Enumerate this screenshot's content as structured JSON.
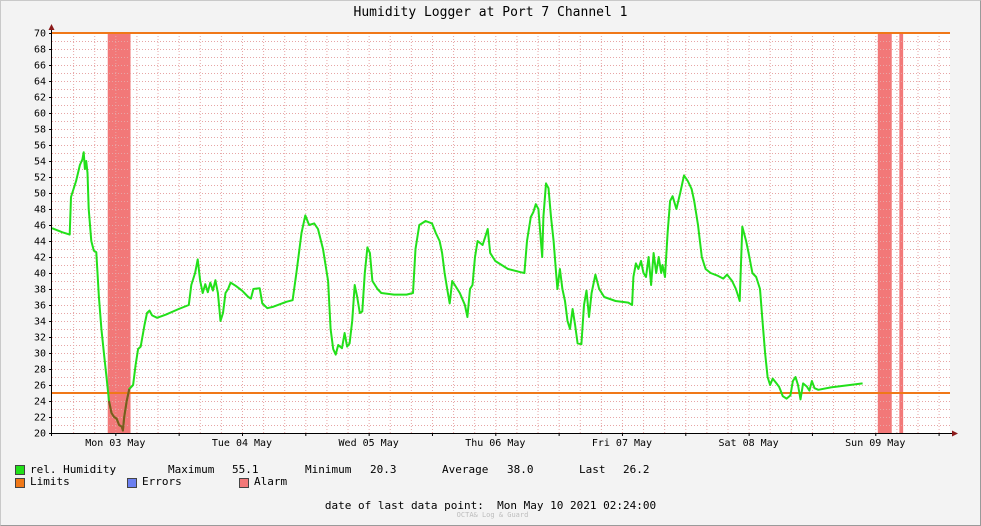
{
  "title": "Humidity Logger at Port 7 Channel 1",
  "colors": {
    "humidity": "#22e01a",
    "humidity_dark": "#7a5a1e",
    "limits": "#f07818",
    "errors": "#6b7ff0",
    "alarm": "#f27878",
    "grid": "#e7a5a5",
    "axis": "#000000"
  },
  "legend": {
    "humidity_label": "rel. Humidity",
    "max_label": "Maximum",
    "max_value": "55.1",
    "min_label": "Minimum",
    "min_value": "20.3",
    "avg_label": "Average",
    "avg_value": "38.0",
    "last_label": "Last",
    "last_value": "26.2",
    "limits_label": "Limits",
    "errors_label": "Errors",
    "alarm_label": "Alarm"
  },
  "footer": {
    "label": "date of last data point:",
    "value": "Mon May 10 2021 02:24:00"
  },
  "credit": "OCTA& Log & Guard",
  "chart_data": {
    "type": "line",
    "title": "Humidity Logger at Port 7 Channel 1",
    "ylim": [
      20,
      70
    ],
    "y_ticks": [
      20,
      22,
      24,
      26,
      28,
      30,
      32,
      34,
      36,
      38,
      40,
      42,
      44,
      46,
      48,
      50,
      52,
      54,
      56,
      58,
      60,
      62,
      64,
      66,
      68,
      70
    ],
    "x_unit": "days from 2021-05-02 12:00",
    "xlim": [
      0,
      7.09
    ],
    "x_ticks": [
      {
        "x": 0.5,
        "label": "Mon 03 May"
      },
      {
        "x": 1.5,
        "label": "Tue 04 May"
      },
      {
        "x": 2.5,
        "label": "Wed 05 May"
      },
      {
        "x": 3.5,
        "label": "Thu 06 May"
      },
      {
        "x": 4.5,
        "label": "Fri 07 May"
      },
      {
        "x": 5.5,
        "label": "Sat 08 May"
      },
      {
        "x": 6.5,
        "label": "Sun 09 May"
      }
    ],
    "grid": true,
    "limits": [
      25,
      70
    ],
    "alarm_ranges": [
      [
        0.44,
        0.62
      ],
      [
        6.52,
        6.63
      ],
      [
        6.69,
        6.72
      ]
    ],
    "series": [
      {
        "name": "rel. Humidity",
        "points": [
          [
            0.0,
            45.6
          ],
          [
            0.08,
            45.1
          ],
          [
            0.14,
            44.8
          ],
          [
            0.15,
            49.5
          ],
          [
            0.19,
            51.5
          ],
          [
            0.22,
            53.5
          ],
          [
            0.24,
            54.2
          ],
          [
            0.25,
            55.1
          ],
          [
            0.26,
            53.0
          ],
          [
            0.27,
            54.0
          ],
          [
            0.28,
            52.5
          ],
          [
            0.29,
            48.0
          ],
          [
            0.31,
            44.0
          ],
          [
            0.33,
            42.8
          ],
          [
            0.35,
            42.6
          ],
          [
            0.37,
            37.0
          ],
          [
            0.39,
            33.0
          ],
          [
            0.41,
            30.0
          ],
          [
            0.43,
            27.0
          ],
          [
            0.45,
            24.0
          ],
          [
            0.47,
            22.5
          ],
          [
            0.49,
            22.0
          ],
          [
            0.51,
            21.8
          ],
          [
            0.53,
            21.0
          ],
          [
            0.55,
            20.8
          ],
          [
            0.56,
            20.3
          ],
          [
            0.57,
            22.0
          ],
          [
            0.59,
            24.0
          ],
          [
            0.61,
            25.5
          ],
          [
            0.64,
            26.0
          ],
          [
            0.66,
            28.5
          ],
          [
            0.68,
            30.5
          ],
          [
            0.7,
            30.8
          ],
          [
            0.73,
            33.5
          ],
          [
            0.75,
            35.0
          ],
          [
            0.77,
            35.3
          ],
          [
            0.79,
            34.7
          ],
          [
            0.83,
            34.4
          ],
          [
            0.9,
            34.8
          ],
          [
            1.0,
            35.5
          ],
          [
            1.08,
            36.0
          ],
          [
            1.1,
            38.5
          ],
          [
            1.13,
            40.0
          ],
          [
            1.15,
            41.7
          ],
          [
            1.17,
            39.0
          ],
          [
            1.19,
            37.5
          ],
          [
            1.21,
            38.6
          ],
          [
            1.23,
            37.6
          ],
          [
            1.25,
            38.8
          ],
          [
            1.27,
            37.8
          ],
          [
            1.29,
            39.1
          ],
          [
            1.31,
            37.5
          ],
          [
            1.33,
            34.0
          ],
          [
            1.35,
            35.0
          ],
          [
            1.37,
            37.5
          ],
          [
            1.39,
            38.0
          ],
          [
            1.41,
            38.8
          ],
          [
            1.45,
            38.4
          ],
          [
            1.5,
            37.8
          ],
          [
            1.55,
            37.0
          ],
          [
            1.57,
            36.8
          ],
          [
            1.59,
            38.0
          ],
          [
            1.64,
            38.1
          ],
          [
            1.66,
            36.2
          ],
          [
            1.7,
            35.6
          ],
          [
            1.75,
            35.8
          ],
          [
            1.85,
            36.4
          ],
          [
            1.9,
            36.6
          ],
          [
            1.93,
            40.0
          ],
          [
            1.97,
            45.0
          ],
          [
            2.0,
            47.2
          ],
          [
            2.03,
            46.0
          ],
          [
            2.07,
            46.2
          ],
          [
            2.1,
            45.5
          ],
          [
            2.14,
            43.0
          ],
          [
            2.18,
            39.0
          ],
          [
            2.2,
            33.0
          ],
          [
            2.22,
            30.5
          ],
          [
            2.24,
            29.8
          ],
          [
            2.26,
            31.0
          ],
          [
            2.29,
            30.6
          ],
          [
            2.31,
            32.5
          ],
          [
            2.33,
            30.8
          ],
          [
            2.35,
            31.2
          ],
          [
            2.37,
            34.0
          ],
          [
            2.39,
            38.5
          ],
          [
            2.41,
            37.0
          ],
          [
            2.43,
            35.0
          ],
          [
            2.45,
            35.2
          ],
          [
            2.47,
            40.0
          ],
          [
            2.49,
            43.2
          ],
          [
            2.51,
            42.5
          ],
          [
            2.53,
            39.0
          ],
          [
            2.57,
            38.0
          ],
          [
            2.6,
            37.5
          ],
          [
            2.7,
            37.3
          ],
          [
            2.8,
            37.3
          ],
          [
            2.85,
            37.5
          ],
          [
            2.87,
            43.0
          ],
          [
            2.9,
            46.0
          ],
          [
            2.95,
            46.5
          ],
          [
            3.0,
            46.2
          ],
          [
            3.03,
            45.0
          ],
          [
            3.06,
            44.0
          ],
          [
            3.08,
            42.5
          ],
          [
            3.1,
            40.0
          ],
          [
            3.12,
            38.0
          ],
          [
            3.14,
            36.2
          ],
          [
            3.16,
            39.0
          ],
          [
            3.18,
            38.5
          ],
          [
            3.22,
            37.5
          ],
          [
            3.26,
            36.0
          ],
          [
            3.28,
            34.5
          ],
          [
            3.3,
            38.0
          ],
          [
            3.32,
            38.5
          ],
          [
            3.34,
            42.0
          ],
          [
            3.36,
            44.0
          ],
          [
            3.4,
            43.5
          ],
          [
            3.42,
            44.5
          ],
          [
            3.44,
            45.5
          ],
          [
            3.46,
            42.5
          ],
          [
            3.5,
            41.5
          ],
          [
            3.6,
            40.5
          ],
          [
            3.7,
            40.1
          ],
          [
            3.73,
            40.0
          ],
          [
            3.75,
            44.0
          ],
          [
            3.78,
            47.0
          ],
          [
            3.8,
            47.6
          ],
          [
            3.82,
            48.6
          ],
          [
            3.84,
            48.0
          ],
          [
            3.86,
            44.0
          ],
          [
            3.87,
            42.0
          ],
          [
            3.88,
            47.0
          ],
          [
            3.9,
            51.2
          ],
          [
            3.92,
            50.6
          ],
          [
            3.94,
            47.0
          ],
          [
            3.96,
            44.0
          ],
          [
            3.98,
            40.0
          ],
          [
            3.99,
            38.0
          ],
          [
            4.01,
            40.5
          ],
          [
            4.03,
            38.0
          ],
          [
            4.05,
            36.5
          ],
          [
            4.07,
            34.0
          ],
          [
            4.09,
            33.0
          ],
          [
            4.11,
            35.5
          ],
          [
            4.13,
            33.5
          ],
          [
            4.15,
            31.2
          ],
          [
            4.18,
            31.1
          ],
          [
            4.2,
            36.0
          ],
          [
            4.22,
            37.8
          ],
          [
            4.24,
            34.5
          ],
          [
            4.26,
            37.5
          ],
          [
            4.29,
            39.8
          ],
          [
            4.32,
            38.0
          ],
          [
            4.36,
            37.0
          ],
          [
            4.45,
            36.5
          ],
          [
            4.55,
            36.3
          ],
          [
            4.58,
            36.0
          ],
          [
            4.59,
            39.5
          ],
          [
            4.61,
            41.2
          ],
          [
            4.63,
            40.5
          ],
          [
            4.65,
            41.5
          ],
          [
            4.67,
            40.0
          ],
          [
            4.69,
            39.5
          ],
          [
            4.71,
            42.0
          ],
          [
            4.73,
            38.5
          ],
          [
            4.75,
            42.5
          ],
          [
            4.77,
            40.0
          ],
          [
            4.79,
            42.0
          ],
          [
            4.81,
            40.0
          ],
          [
            4.82,
            41.0
          ],
          [
            4.84,
            39.5
          ],
          [
            4.86,
            45.0
          ],
          [
            4.88,
            49.0
          ],
          [
            4.9,
            49.6
          ],
          [
            4.93,
            48.0
          ],
          [
            4.96,
            50.0
          ],
          [
            4.99,
            52.2
          ],
          [
            5.02,
            51.5
          ],
          [
            5.05,
            50.5
          ],
          [
            5.07,
            49.0
          ],
          [
            5.1,
            46.0
          ],
          [
            5.13,
            42.0
          ],
          [
            5.16,
            40.5
          ],
          [
            5.2,
            40.0
          ],
          [
            5.25,
            39.7
          ],
          [
            5.3,
            39.3
          ],
          [
            5.33,
            39.8
          ],
          [
            5.37,
            39.0
          ],
          [
            5.4,
            38.0
          ],
          [
            5.42,
            37.0
          ],
          [
            5.43,
            36.5
          ],
          [
            5.45,
            45.8
          ],
          [
            5.48,
            44.0
          ],
          [
            5.5,
            42.5
          ],
          [
            5.53,
            40.0
          ],
          [
            5.56,
            39.5
          ],
          [
            5.59,
            38.0
          ],
          [
            5.61,
            34.0
          ],
          [
            5.63,
            30.0
          ],
          [
            5.65,
            27.0
          ],
          [
            5.67,
            26.0
          ],
          [
            5.69,
            26.8
          ],
          [
            5.72,
            26.2
          ],
          [
            5.74,
            25.8
          ],
          [
            5.75,
            25.4
          ],
          [
            5.77,
            24.6
          ],
          [
            5.8,
            24.3
          ],
          [
            5.83,
            24.7
          ],
          [
            5.85,
            26.5
          ],
          [
            5.87,
            27.0
          ],
          [
            5.89,
            26.0
          ],
          [
            5.91,
            24.2
          ],
          [
            5.93,
            26.2
          ],
          [
            5.96,
            25.8
          ],
          [
            5.98,
            25.3
          ],
          [
            6.0,
            26.5
          ],
          [
            6.02,
            25.6
          ],
          [
            6.05,
            25.4
          ],
          [
            6.15,
            25.7
          ],
          [
            6.3,
            26.0
          ],
          [
            6.4,
            26.2
          ]
        ]
      }
    ]
  }
}
